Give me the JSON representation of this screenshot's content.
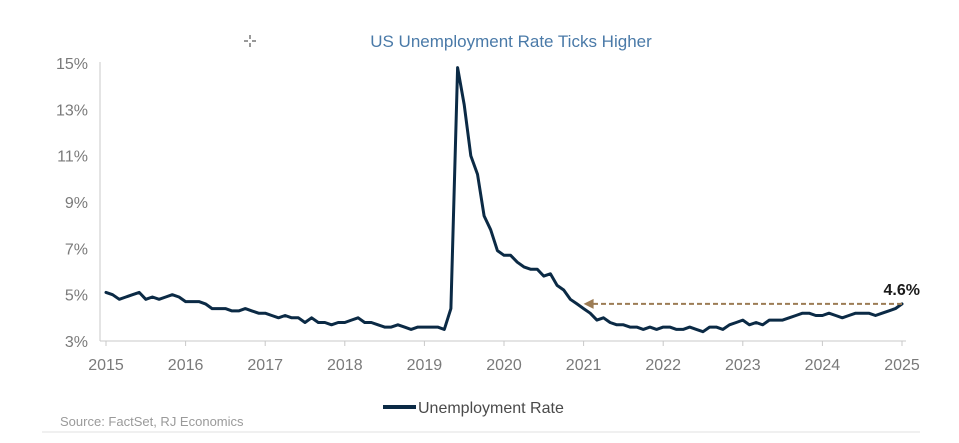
{
  "chart_data": {
    "type": "line",
    "title": "US Unemployment Rate Ticks Higher",
    "xlabel": "",
    "ylabel": "",
    "x_ticks": [
      "2015",
      "2016",
      "2017",
      "2018",
      "2019",
      "2020",
      "2021",
      "2022",
      "2023",
      "2024",
      "2025"
    ],
    "y_ticks": [
      "3%",
      "5%",
      "7%",
      "9%",
      "11%",
      "13%",
      "15%"
    ],
    "xlim": [
      2015.0,
      2025.0
    ],
    "ylim": [
      3,
      15
    ],
    "y_unit": "%",
    "grid": false,
    "legend_position": "bottom-center",
    "series": [
      {
        "name": "Unemployment Rate",
        "color": "#0b2a45",
        "x": [
          2015.0,
          2015.083,
          2015.167,
          2015.25,
          2015.333,
          2015.417,
          2015.5,
          2015.583,
          2015.667,
          2015.75,
          2015.833,
          2015.917,
          2016.0,
          2016.083,
          2016.167,
          2016.25,
          2016.333,
          2016.417,
          2016.5,
          2016.583,
          2016.667,
          2016.75,
          2016.833,
          2016.917,
          2017.0,
          2017.083,
          2017.167,
          2017.25,
          2017.333,
          2017.417,
          2017.5,
          2017.583,
          2017.667,
          2017.75,
          2017.833,
          2017.917,
          2018.0,
          2018.083,
          2018.167,
          2018.25,
          2018.333,
          2018.417,
          2018.5,
          2018.583,
          2018.667,
          2018.75,
          2018.833,
          2018.917,
          2019.0,
          2019.083,
          2019.167,
          2019.25,
          2019.333,
          2019.417,
          2019.5,
          2019.583,
          2019.667,
          2019.75,
          2019.833,
          2019.917,
          2020.0,
          2020.083,
          2020.167,
          2020.25,
          2020.333,
          2020.417,
          2020.5,
          2020.583,
          2020.667,
          2020.75,
          2020.833,
          2020.917,
          2021.0,
          2021.083,
          2021.167,
          2021.25,
          2021.333,
          2021.417,
          2021.5,
          2021.583,
          2021.667,
          2021.75,
          2021.833,
          2021.917,
          2022.0,
          2022.083,
          2022.167,
          2022.25,
          2022.333,
          2022.417,
          2022.5,
          2022.583,
          2022.667,
          2022.75,
          2022.833,
          2022.917,
          2023.0,
          2023.083,
          2023.167,
          2023.25,
          2023.333,
          2023.417,
          2023.5,
          2023.583,
          2023.667,
          2023.75,
          2023.833,
          2023.917,
          2024.0,
          2024.083,
          2024.167,
          2024.25,
          2024.333,
          2024.417,
          2024.5,
          2024.583,
          2024.667,
          2024.75,
          2024.833,
          2024.917,
          2025.0
        ],
        "values": [
          5.1,
          5.0,
          4.8,
          4.9,
          5.0,
          5.1,
          4.8,
          4.9,
          4.8,
          4.9,
          5.0,
          4.9,
          4.7,
          4.7,
          4.7,
          4.6,
          4.4,
          4.4,
          4.4,
          4.3,
          4.3,
          4.4,
          4.3,
          4.2,
          4.2,
          4.1,
          4.0,
          4.1,
          4.0,
          4.0,
          3.8,
          4.0,
          3.8,
          3.8,
          3.7,
          3.8,
          3.8,
          3.9,
          4.0,
          3.8,
          3.8,
          3.7,
          3.6,
          3.6,
          3.7,
          3.6,
          3.5,
          3.6,
          3.6,
          3.6,
          3.6,
          3.5,
          4.4,
          14.8,
          13.2,
          11.0,
          10.2,
          8.4,
          7.8,
          6.9,
          6.7,
          6.7,
          6.4,
          6.2,
          6.1,
          6.1,
          5.8,
          5.9,
          5.4,
          5.2,
          4.8,
          4.6,
          4.4,
          4.2,
          3.9,
          4.0,
          3.8,
          3.7,
          3.7,
          3.6,
          3.6,
          3.5,
          3.6,
          3.5,
          3.6,
          3.6,
          3.5,
          3.5,
          3.6,
          3.5,
          3.4,
          3.6,
          3.6,
          3.5,
          3.7,
          3.8,
          3.9,
          3.7,
          3.8,
          3.7,
          3.9,
          3.9,
          3.9,
          4.0,
          4.1,
          4.2,
          4.2,
          4.1,
          4.1,
          4.2,
          4.1,
          4.0,
          4.1,
          4.2,
          4.2,
          4.2,
          4.1,
          4.2,
          4.3,
          4.4,
          4.6
        ]
      }
    ],
    "annotations": [
      {
        "text": "4.6%",
        "value": 4.6,
        "arrow_from_x": 2025.0,
        "arrow_to_x": 2021.0,
        "arrow_color": "#9c7c55"
      }
    ],
    "source": "Source: FactSet, RJ Economics"
  }
}
